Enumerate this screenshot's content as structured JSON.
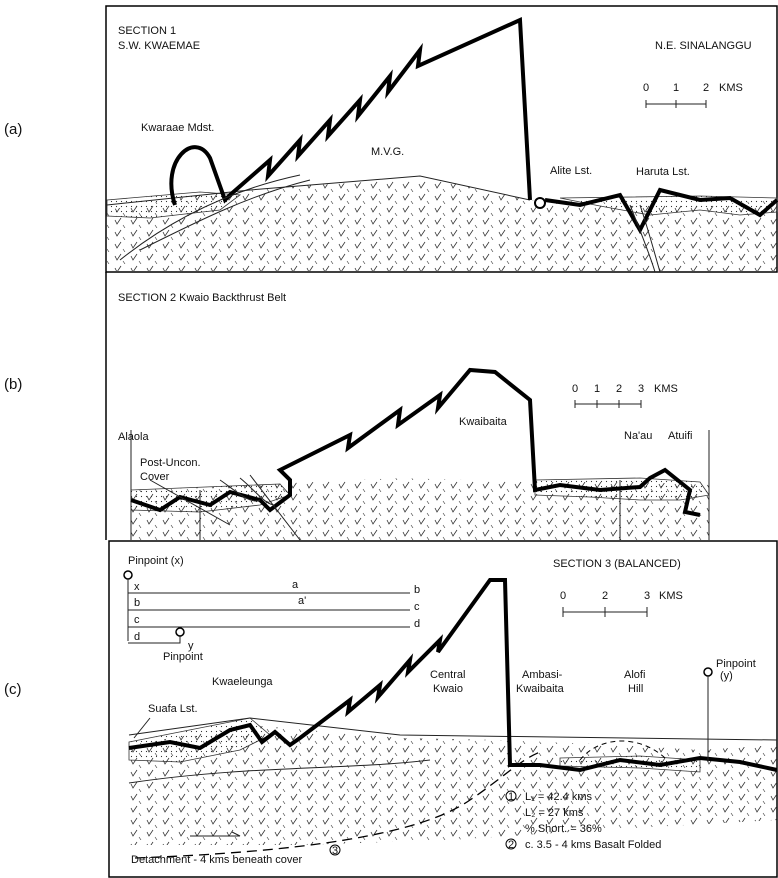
{
  "panels": [
    {
      "label": "(a)",
      "title": "SECTION 1",
      "subtitle": "S.W. KWAEMAE",
      "right_title": "N.E. SINALANGGU",
      "scale": {
        "ticks": [
          0,
          1,
          2
        ],
        "unit": "KMS"
      },
      "annotations": [
        "Kwaraae Mdst.",
        "M.V.G.",
        "Alite Lst.",
        "Haruta Lst."
      ]
    },
    {
      "label": "(b)",
      "title": "SECTION 2 Kwaio Backthrust Belt",
      "scale": {
        "ticks": [
          0,
          1,
          2,
          3
        ],
        "unit": "KMS"
      },
      "annotations": [
        "Alaola",
        "Post-Uncon.",
        "Cover",
        "Kwaibaita",
        "Na'au",
        "Atuifi"
      ]
    },
    {
      "label": "(c)",
      "title": "SECTION 3 (BALANCED)",
      "scale": {
        "ticks": [
          0,
          2,
          3
        ],
        "unit": "KMS"
      },
      "pinpoints": [
        "Pinpoint (x)",
        "Pinpoint",
        "Pinpoint",
        "(y)"
      ],
      "line_labels": [
        "x",
        "a",
        "a'",
        "b",
        "b",
        "c",
        "c",
        "d",
        "d",
        "y"
      ],
      "annotations": [
        "Kwaeleunga",
        "Central",
        "Kwaio",
        "Ambasi-",
        "Kwaibaita",
        "Alofi",
        "Hill",
        "Suafa Lst."
      ],
      "notes": [
        "L₁ = 42.4 kms",
        "L₂ = 27 kms",
        "% Short. = 36%",
        "c. 3.5 - 4 kms Basalt Folded",
        "Detachment - 4 kms beneath cover"
      ],
      "note_markers": [
        "1",
        "2",
        "3"
      ]
    }
  ]
}
